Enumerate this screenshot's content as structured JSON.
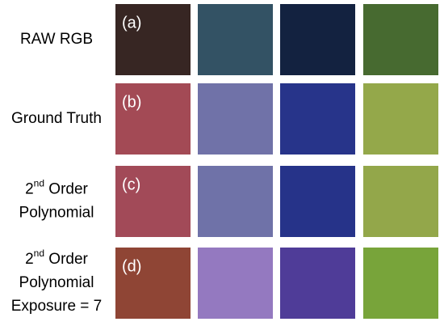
{
  "rows": [
    {
      "label": [
        "RAW RGB"
      ],
      "tag": "(a)",
      "colors": [
        "#372623",
        "#335264",
        "#132240",
        "#476a30"
      ]
    },
    {
      "label": [
        "Ground Truth"
      ],
      "tag": "(b)",
      "colors": [
        "#a34a55",
        "#7072a8",
        "#27348a",
        "#94a84a"
      ]
    },
    {
      "label": [
        {
          "base": "2",
          "sup": "nd",
          "rest": " Order"
        },
        "Polynomial"
      ],
      "tag": "(c)",
      "colors": [
        "#a24a58",
        "#6f72a8",
        "#263389",
        "#93a74a"
      ]
    },
    {
      "label": [
        {
          "base": "2",
          "sup": "nd",
          "rest": " Order"
        },
        "Polynomial",
        "Exposure = 7"
      ],
      "tag": "(d)",
      "colors": [
        "#8f4535",
        "#9479c0",
        "#4f3c98",
        "#78a43a"
      ]
    }
  ]
}
